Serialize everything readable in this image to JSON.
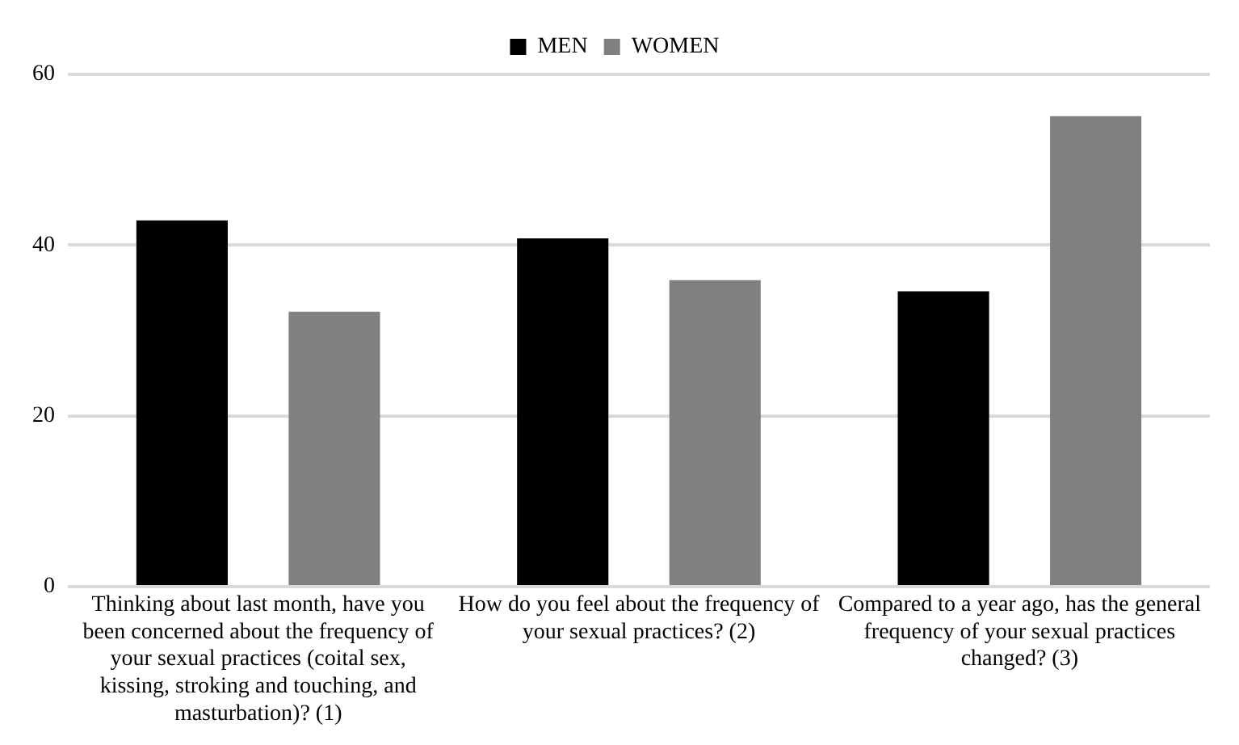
{
  "chart_data": {
    "type": "bar",
    "categories": [
      "Thinking about last month, have you been concerned about the frequency of your sexual practices (coital sex, kissing, stroking and touching, and masturbation)? (1)",
      "How do you feel about the frequency of your sexual practices? (2)",
      "Compared to a year ago, has the general frequency of your sexual practices changed? (3)"
    ],
    "series": [
      {
        "name": "MEN",
        "color": "#000000",
        "values": [
          42.9,
          40.8,
          34.6
        ]
      },
      {
        "name": "WOMEN",
        "color": "#808080",
        "values": [
          32.2,
          35.9,
          55.1
        ]
      }
    ],
    "ylim": [
      0,
      60
    ],
    "yticks": [
      0,
      20,
      40,
      60
    ],
    "grid": "y",
    "legend": "top"
  }
}
